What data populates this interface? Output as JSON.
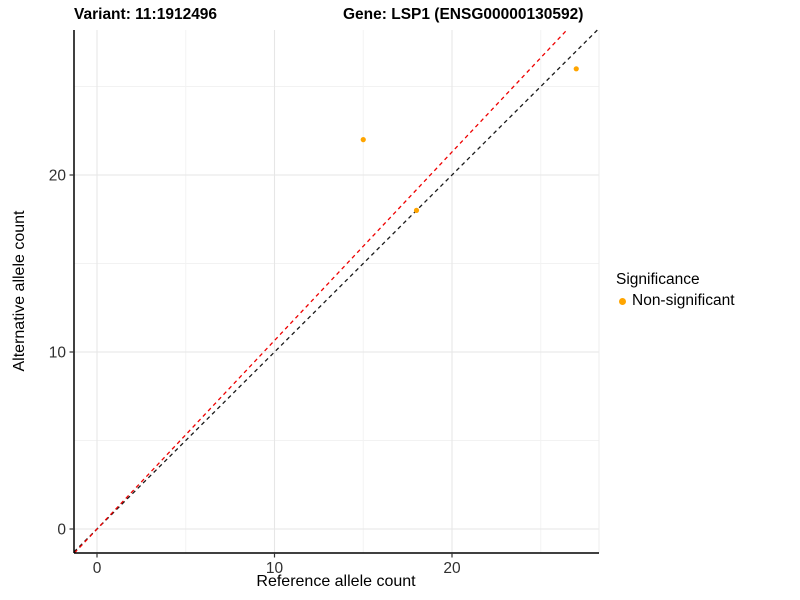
{
  "header": {
    "title_left": "Variant: 11:1912496",
    "title_right": "Gene: LSP1 (ENSG00000130592)"
  },
  "chart_data": {
    "type": "scatter",
    "xlabel": "Reference allele count",
    "ylabel": "Alternative allele count",
    "xlim": [
      -1.3,
      28.3
    ],
    "ylim": [
      -1.4,
      28.2
    ],
    "xticks": {
      "major": [
        0,
        10,
        20
      ],
      "minor": [
        5,
        15,
        25
      ]
    },
    "yticks": {
      "major": [
        0,
        10,
        20
      ],
      "minor": [
        5,
        15,
        25
      ]
    },
    "grid": {
      "major_color": "#e6e6e6",
      "minor_color": "#f2f2f2",
      "panel_edge_color": "#ececec"
    },
    "axis": {
      "line_color": "#000000",
      "tick_color": "#333333",
      "tick_label_color": "#303030"
    },
    "series": [
      {
        "name": "Non-significant",
        "color": "#FFA500",
        "marker": "circle",
        "points": [
          {
            "x": 15,
            "y": 22
          },
          {
            "x": 18,
            "y": 18
          },
          {
            "x": 27,
            "y": 26
          }
        ]
      }
    ],
    "reference_lines": [
      {
        "name": "identity-line",
        "color": "#1a1a1a",
        "dashed": true,
        "slope": 1.0,
        "intercept": 0
      },
      {
        "name": "fit-line",
        "color": "#ee0000",
        "dashed": true,
        "slope": 1.065,
        "intercept": 0
      }
    ],
    "legend": {
      "title": "Significance",
      "position": "right",
      "items": [
        {
          "label": "Non-significant",
          "color": "#FFA500"
        }
      ]
    }
  }
}
